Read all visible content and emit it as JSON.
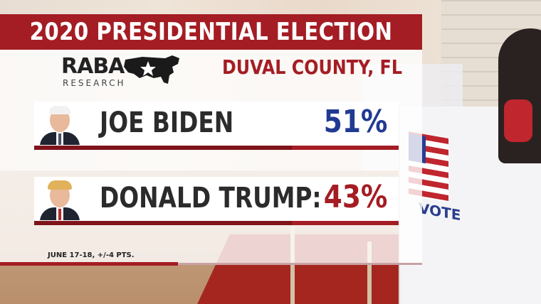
{
  "title": "2020 PRESIDENTIAL ELECTION",
  "logo": {
    "word": "RABA",
    "sub": "RESEARCH"
  },
  "county": "DUVAL COUNTY, FL",
  "candidates": [
    {
      "name": "JOE BIDEN",
      "percent": "51%",
      "color": "#213a92"
    },
    {
      "name": "DONALD TRUMP:",
      "percent": "43%",
      "color": "#a41d24"
    }
  ],
  "footnote": "JUNE 17-18, +/-4 PTS.",
  "background": {
    "sign_text": "VOTE"
  },
  "colors": {
    "accent": "#a41d24",
    "panel": "#ffffff"
  }
}
